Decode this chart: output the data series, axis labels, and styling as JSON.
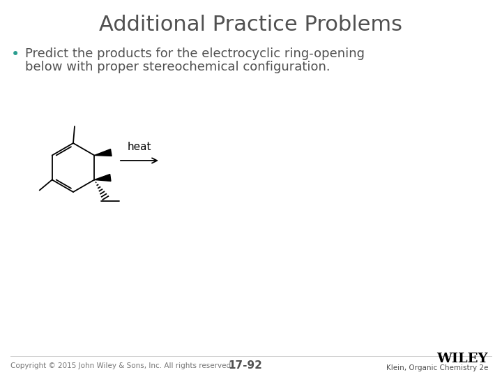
{
  "title": "Additional Practice Problems",
  "title_color": "#505050",
  "title_fontsize": 22,
  "bullet_text_line1": "Predict the products for the electrocyclic ring-opening",
  "bullet_text_line2": "below with proper stereochemical configuration.",
  "bullet_color": "#2a9d8f",
  "text_color": "#505050",
  "text_fontsize": 13,
  "heat_label": "heat",
  "heat_fontsize": 11,
  "copyright_text": "Copyright © 2015 John Wiley & Sons, Inc. All rights reserved.",
  "page_number": "17-92",
  "right_footer": "Klein, Organic Chemistry 2e",
  "wiley_text": "WILEY",
  "footer_fontsize": 7.5,
  "wiley_fontsize": 14,
  "background_color": "#ffffff"
}
